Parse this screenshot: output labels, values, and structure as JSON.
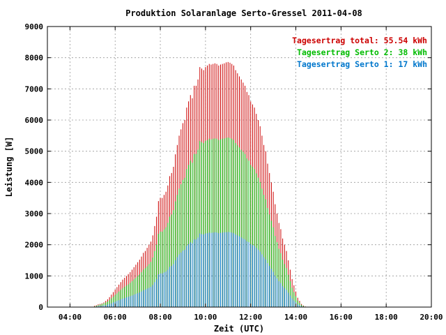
{
  "chart_data": {
    "type": "bar",
    "title": "Produktion Solaranlage Serto-Gressel 2011-04-08",
    "xlabel": "Zeit (UTC)",
    "ylabel": "Leistung [W]",
    "x_ticks": [
      "04:00",
      "06:00",
      "08:00",
      "10:00",
      "12:00",
      "14:00",
      "16:00",
      "18:00",
      "20:00"
    ],
    "y_ticks": [
      "0",
      "1000",
      "2000",
      "3000",
      "4000",
      "5000",
      "6000",
      "7000",
      "8000",
      "9000"
    ],
    "xlim_hours": [
      3.0,
      20.0
    ],
    "ylim": [
      0,
      9000
    ],
    "grid": true,
    "legend_position": "top-right",
    "sample_interval_minutes": 5,
    "series": [
      {
        "name": "Tagesertrag total: 55.54 kWh",
        "color": "#cc0000",
        "start_time": "05:00",
        "values": [
          10,
          40,
          60,
          90,
          100,
          120,
          150,
          200,
          250,
          320,
          400,
          480,
          560,
          640,
          720,
          800,
          880,
          940,
          1000,
          1060,
          1120,
          1200,
          1280,
          1360,
          1440,
          1520,
          1620,
          1740,
          1800,
          1900,
          2000,
          2100,
          2300,
          2600,
          2900,
          3400,
          3500,
          3500,
          3600,
          3700,
          3900,
          4200,
          4300,
          4500,
          4900,
          5200,
          5500,
          5700,
          5900,
          6000,
          6400,
          6600,
          6800,
          6700,
          7100,
          7100,
          7300,
          7700,
          7650,
          7600,
          7700,
          7750,
          7800,
          7780,
          7800,
          7820,
          7800,
          7750,
          7780,
          7800,
          7820,
          7850,
          7860,
          7840,
          7800,
          7750,
          7600,
          7500,
          7400,
          7300,
          7200,
          7100,
          6900,
          6800,
          6600,
          6500,
          6400,
          6200,
          6000,
          5800,
          5500,
          5200,
          5000,
          4600,
          4300,
          4000,
          3700,
          3300,
          3000,
          2700,
          2500,
          2200,
          2000,
          1800,
          1500,
          1200,
          900,
          700,
          500,
          300,
          200,
          100,
          50,
          20
        ]
      },
      {
        "name": "Tagesertrag Serto 2: 38 kWh",
        "color": "#00bb00",
        "start_time": "05:00",
        "values": [
          5,
          20,
          40,
          60,
          80,
          100,
          120,
          150,
          180,
          220,
          280,
          330,
          390,
          440,
          500,
          550,
          600,
          650,
          690,
          730,
          780,
          830,
          890,
          940,
          1000,
          1050,
          1120,
          1200,
          1250,
          1310,
          1380,
          1450,
          1590,
          1800,
          2000,
          2350,
          2420,
          2420,
          2490,
          2560,
          2700,
          2900,
          2970,
          3110,
          3390,
          3600,
          3800,
          3940,
          4080,
          4150,
          4430,
          4560,
          4700,
          4630,
          4910,
          4910,
          5050,
          5330,
          5290,
          5260,
          5330,
          5360,
          5400,
          5380,
          5400,
          5410,
          5400,
          5360,
          5380,
          5400,
          5410,
          5430,
          5440,
          5420,
          5400,
          5360,
          5260,
          5190,
          5120,
          5050,
          4980,
          4910,
          4770,
          4700,
          4560,
          4500,
          4430,
          4290,
          4150,
          4010,
          3800,
          3600,
          3460,
          3180,
          2970,
          2770,
          2560,
          2280,
          2080,
          1870,
          1730,
          1520,
          1380,
          1250,
          1040,
          830,
          620,
          480,
          350,
          210,
          140,
          70,
          35,
          14
        ]
      },
      {
        "name": "Tagesertrag Serto 1: 17 kWh",
        "color": "#0077cc",
        "start_time": "05:00",
        "values": [
          2,
          10,
          20,
          30,
          35,
          40,
          50,
          60,
          80,
          100,
          120,
          150,
          170,
          200,
          220,
          250,
          270,
          290,
          310,
          330,
          350,
          370,
          400,
          420,
          450,
          470,
          500,
          540,
          560,
          590,
          620,
          650,
          710,
          800,
          900,
          1050,
          1080,
          1080,
          1110,
          1140,
          1200,
          1290,
          1320,
          1380,
          1500,
          1600,
          1690,
          1750,
          1810,
          1840,
          1960,
          2020,
          2080,
          2050,
          2170,
          2170,
          2230,
          2360,
          2340,
          2330,
          2360,
          2370,
          2390,
          2380,
          2390,
          2400,
          2390,
          2370,
          2380,
          2390,
          2400,
          2400,
          2410,
          2400,
          2390,
          2370,
          2330,
          2300,
          2270,
          2240,
          2200,
          2170,
          2110,
          2080,
          2020,
          1990,
          1960,
          1900,
          1840,
          1780,
          1690,
          1600,
          1530,
          1410,
          1320,
          1230,
          1130,
          1010,
          920,
          830,
          770,
          670,
          610,
          550,
          460,
          370,
          280,
          210,
          150,
          90,
          60,
          30,
          15,
          6
        ]
      }
    ]
  }
}
